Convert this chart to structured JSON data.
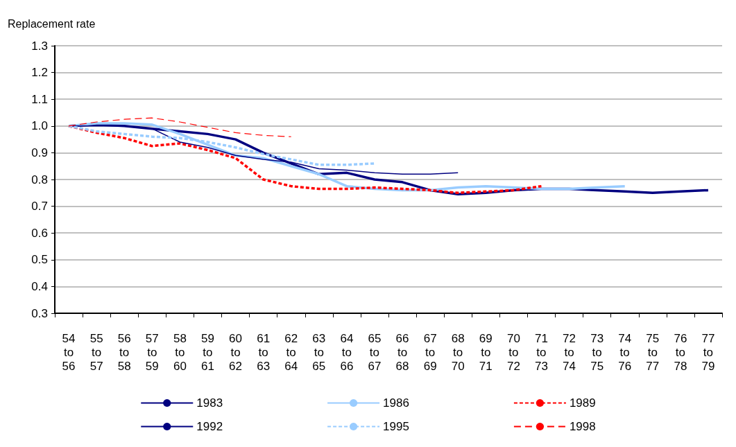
{
  "chart_data": {
    "type": "line",
    "ylabel": "Replacement rate",
    "categories": [
      "54 to 56",
      "55 to 57",
      "56 to 58",
      "57 to 59",
      "58 to 60",
      "59 to 61",
      "60 to 62",
      "61 to 63",
      "62 to 64",
      "63 to 65",
      "64 to 66",
      "65 to 67",
      "66 to 68",
      "67 to 69",
      "68 to 70",
      "69 to 71",
      "70 to 72",
      "71 to 73",
      "72 to 74",
      "73 to 75",
      "74 to 76",
      "75 to 77",
      "76 to 78",
      "77 to 79"
    ],
    "ylim": [
      0.3,
      1.3
    ],
    "yticks": [
      0.3,
      0.4,
      0.5,
      0.6,
      0.7,
      0.8,
      0.9,
      {
        "value": 1,
        "label": "1.0"
      },
      1.1,
      1.2,
      1.3
    ],
    "grid": "y",
    "legend": "bottom",
    "marker": "none",
    "series": [
      {
        "name": "1983",
        "color": "#000080",
        "line_style": "solid",
        "values": [
          1.0,
          1.005,
          1.0,
          0.99,
          0.98,
          0.97,
          0.95,
          0.9,
          0.86,
          0.82,
          0.825,
          0.8,
          0.79,
          0.76,
          0.745,
          0.75,
          0.76,
          0.765,
          0.765,
          0.76,
          0.755,
          0.75,
          0.755,
          0.76
        ]
      },
      {
        "name": "1986",
        "color": "#99ccff",
        "line_style": "solid",
        "values": [
          1.0,
          1.01,
          1.01,
          1.005,
          0.97,
          0.93,
          0.89,
          0.88,
          0.85,
          0.82,
          0.775,
          0.765,
          0.76,
          0.76,
          0.77,
          0.775,
          0.77,
          0.765,
          0.765,
          0.77,
          0.775,
          null,
          null,
          null
        ]
      },
      {
        "name": "1989",
        "color": "#ff0000",
        "line_style": "dotted",
        "values": [
          1.0,
          0.975,
          0.955,
          0.925,
          0.935,
          0.91,
          0.88,
          0.8,
          0.775,
          0.765,
          0.765,
          0.77,
          0.765,
          0.76,
          0.75,
          0.755,
          0.76,
          0.775,
          null,
          null,
          null,
          null,
          null,
          null
        ]
      },
      {
        "name": "1992",
        "color": "#000080",
        "line_style": "solid",
        "values": [
          1.0,
          1.0,
          1.0,
          0.99,
          0.94,
          0.92,
          0.89,
          0.875,
          0.865,
          0.84,
          0.835,
          0.825,
          0.82,
          0.82,
          0.825,
          null,
          null,
          null,
          null,
          null,
          null,
          null,
          null,
          null
        ]
      },
      {
        "name": "1995",
        "color": "#99ccff",
        "line_style": "dotted",
        "values": [
          1.0,
          0.98,
          0.97,
          0.96,
          0.955,
          0.94,
          0.92,
          0.895,
          0.875,
          0.855,
          0.855,
          0.86,
          null,
          null,
          null,
          null,
          null,
          null,
          null,
          null,
          null,
          null,
          null,
          null
        ]
      },
      {
        "name": "1998",
        "color": "#ff0000",
        "line_style": "dashed",
        "values": [
          1.0,
          1.015,
          1.025,
          1.03,
          1.015,
          0.995,
          0.975,
          0.965,
          0.96,
          null,
          null,
          null,
          null,
          null,
          null,
          null,
          null,
          null,
          null,
          null,
          null,
          null,
          null,
          null
        ]
      }
    ]
  }
}
